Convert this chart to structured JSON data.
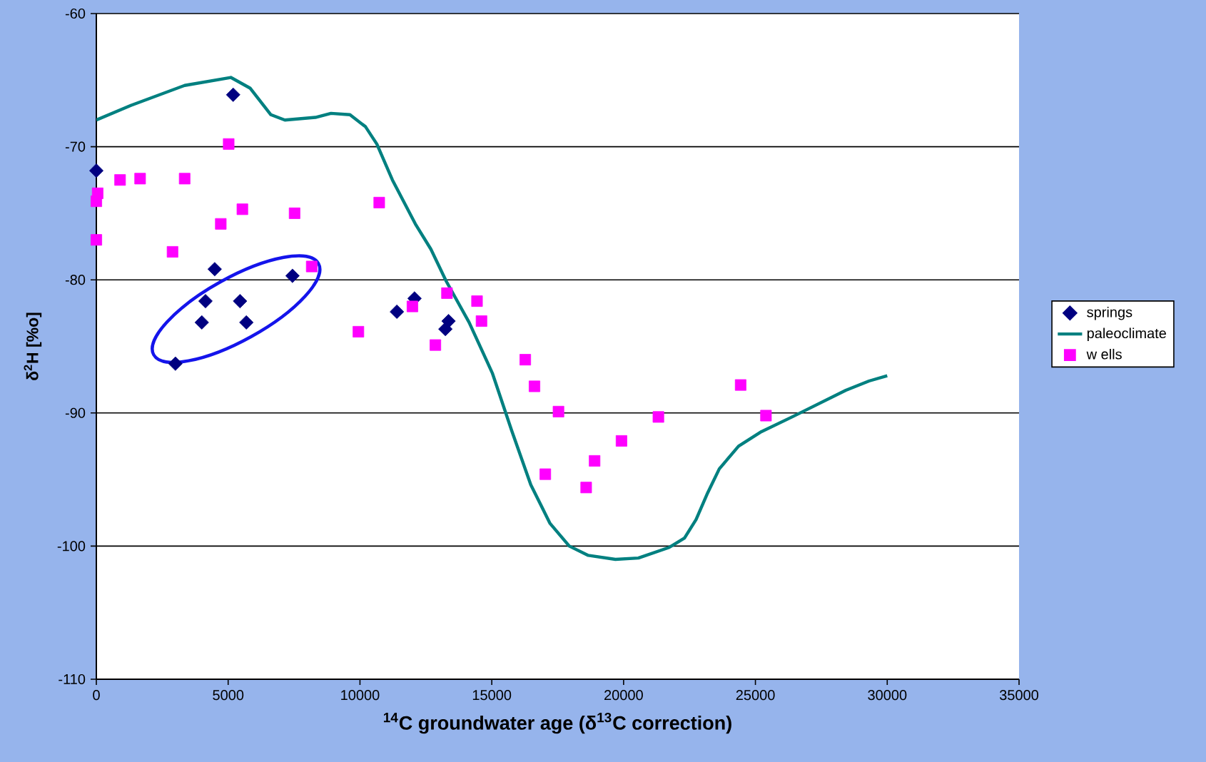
{
  "chart_data": {
    "type": "scatter",
    "xlabel": "$^{14}$C groundwater age (δ$^{13}$C correction)",
    "ylabel": "δ$^{2}$H [%o]",
    "xlim": [
      0,
      35000
    ],
    "ylim": [
      -110,
      -60
    ],
    "xticks": [
      0,
      5000,
      10000,
      15000,
      20000,
      25000,
      30000,
      35000
    ],
    "yticks": [
      -110,
      -100,
      -90,
      -80,
      -70,
      -60
    ],
    "grid": "y",
    "legend": "right",
    "series": [
      {
        "name": "springs",
        "marker": "diamond",
        "color": "#000080",
        "x": [
          0,
          5190,
          4490,
          7440,
          4140,
          5450,
          4000,
          5690,
          3000,
          12070,
          11400,
          13360,
          13240
        ],
        "values": [
          -71.8,
          -66.1,
          -79.2,
          -79.7,
          -81.6,
          -81.6,
          -83.2,
          -83.2,
          -86.3,
          -81.4,
          -82.4,
          -83.1,
          -83.7
        ]
      },
      {
        "name": "paleoclimate",
        "type": "line",
        "marker": "none",
        "color": "#008080",
        "x": [
          0,
          1310,
          3350,
          5100,
          5830,
          6620,
          7150,
          8310,
          8900,
          9620,
          10210,
          10640,
          11230,
          12100,
          12690,
          13270,
          14140,
          15020,
          15750,
          16480,
          17210,
          17940,
          18660,
          19690,
          20560,
          21730,
          22310,
          22750,
          23190,
          23630,
          24360,
          25230,
          26390,
          28430,
          29310,
          30000
        ],
        "values": [
          -68.0,
          -66.9,
          -65.4,
          -64.8,
          -65.6,
          -67.6,
          -68.0,
          -67.8,
          -67.5,
          -67.6,
          -68.5,
          -69.8,
          -72.5,
          -75.8,
          -77.7,
          -80.1,
          -83.2,
          -87.0,
          -91.3,
          -95.4,
          -98.3,
          -100.0,
          -100.7,
          -101.0,
          -100.9,
          -100.1,
          -99.4,
          -98.0,
          -96.0,
          -94.2,
          -92.5,
          -91.4,
          -90.3,
          -88.3,
          -87.6,
          -87.2
        ]
      },
      {
        "name": "w ells",
        "marker": "square",
        "color": "#ff00ff",
        "x": [
          50,
          0,
          0,
          900,
          1660,
          3350,
          5020,
          5540,
          4720,
          7520,
          2890,
          8170,
          10730,
          9940,
          11990,
          12860,
          13300,
          14440,
          14610,
          16270,
          16620,
          17530,
          17030,
          18580,
          18900,
          19920,
          21320,
          24440,
          25400
        ],
        "values": [
          -73.5,
          -74.1,
          -77.0,
          -72.5,
          -72.4,
          -72.4,
          -69.8,
          -74.7,
          -75.8,
          -75.0,
          -77.9,
          -79.0,
          -74.2,
          -83.9,
          -82.0,
          -84.9,
          -81.0,
          -81.6,
          -83.1,
          -86.0,
          -88.0,
          -89.9,
          -94.6,
          -95.6,
          -93.6,
          -92.1,
          -90.3,
          -87.9,
          -90.2
        ]
      }
    ]
  }
}
